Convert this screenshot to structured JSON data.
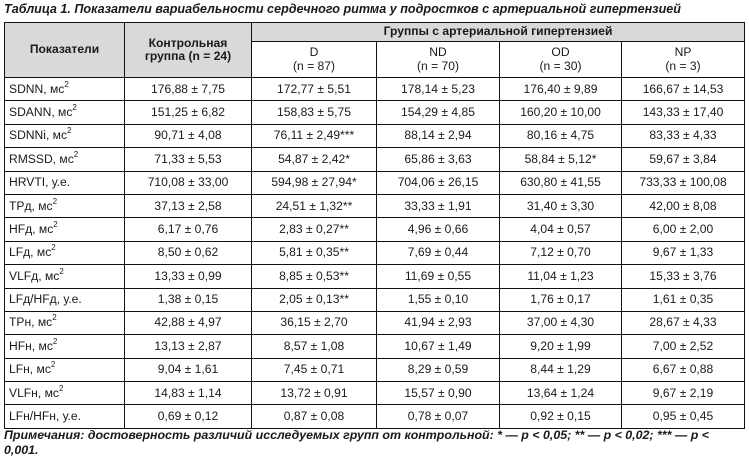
{
  "caption": "Таблица 1. Показатели вариабельности сердечного ритма у подростков с артериальной гипертензией",
  "header": {
    "indicator": "Показатели",
    "control": "Контрольная группа (n = 24)",
    "group_title": "Группы с артериальной гипертензией",
    "groups": [
      {
        "name": "D",
        "n": "(n = 87)"
      },
      {
        "name": "ND",
        "n": "(n = 70)"
      },
      {
        "name": "OD",
        "n": "(n = 30)"
      },
      {
        "name": "NP",
        "n": "(n = 3)"
      }
    ]
  },
  "rows": [
    {
      "label": "SDNN, мс",
      "sup": "2",
      "values": [
        "176,88 ± 7,75",
        "172,77 ± 5,51",
        "178,14 ± 5,23",
        "176,40 ± 9,89",
        "166,67 ± 14,53"
      ]
    },
    {
      "label": "SDANN, мс",
      "sup": "2",
      "values": [
        "151,25 ± 6,82",
        "158,83 ± 5,75",
        "154,29 ± 4,85",
        "160,20 ± 10,00",
        "143,33 ± 17,40"
      ]
    },
    {
      "label": "SDNNi, мс",
      "sup": "2",
      "values": [
        "90,71 ± 4,08",
        "76,11 ± 2,49***",
        "88,14 ± 2,94",
        "80,16 ± 4,75",
        "83,33 ± 4,33"
      ]
    },
    {
      "label": "RMSSD, мс",
      "sup": "2",
      "values": [
        "71,33 ± 5,53",
        "54,87 ± 2,42*",
        "65,86 ± 3,63",
        "58,84 ± 5,12*",
        "59,67 ± 3,84"
      ]
    },
    {
      "label": "HRVTI, у.е.",
      "sup": "",
      "values": [
        "710,08 ± 33,00",
        "594,98 ± 27,94*",
        "704,06 ± 26,15",
        "630,80 ± 41,55",
        "733,33 ± 100,08"
      ]
    },
    {
      "label": "TPд, мс",
      "sup": "2",
      "values": [
        "37,13 ± 2,58",
        "24,51 ± 1,32**",
        "33,33 ± 1,91",
        "31,40 ± 3,30",
        "42,00 ± 8,08"
      ]
    },
    {
      "label": "HFд, мс",
      "sup": "2",
      "values": [
        "6,17 ± 0,76",
        "2,83 ± 0,27**",
        "4,96 ± 0,66",
        "4,04 ± 0,57",
        "6,00 ± 2,00"
      ]
    },
    {
      "label": "LFд, мс",
      "sup": "2",
      "values": [
        "8,50 ± 0,62",
        "5,81 ± 0,35**",
        "7,69 ± 0,44",
        "7,12 ± 0,70",
        "9,67 ± 1,33"
      ]
    },
    {
      "label": "VLFд, мс",
      "sup": "2",
      "values": [
        "13,33 ± 0,99",
        "8,85 ± 0,53**",
        "11,69 ± 0,55",
        "11,04 ± 1,23",
        "15,33 ± 3,76"
      ]
    },
    {
      "label": "LFд/HFд, у.е.",
      "sup": "",
      "values": [
        "1,38 ± 0,15",
        "2,05 ± 0,13**",
        "1,55 ± 0,10",
        "1,76 ± 0,17",
        "1,61 ± 0,35"
      ]
    },
    {
      "label": "TPн, мс",
      "sup": "2",
      "values": [
        "42,88 ± 4,97",
        "36,15 ± 2,70",
        "41,94 ± 2,93",
        "37,00 ± 4,30",
        "28,67 ± 4,33"
      ]
    },
    {
      "label": "HFн, мс",
      "sup": "2",
      "values": [
        "13,13 ± 2,87",
        "8,57 ± 1,08",
        "10,67 ± 1,49",
        "9,20 ± 1,99",
        "7,00 ± 2,52"
      ]
    },
    {
      "label": "LFн, мс",
      "sup": "2",
      "values": [
        "9,04 ± 1,61",
        "7,45 ± 0,71",
        "8,29 ± 0,59",
        "8,44 ± 1,29",
        "6,67 ± 0,88"
      ]
    },
    {
      "label": "VLFн, мс",
      "sup": "2",
      "values": [
        "14,83 ± 1,14",
        "13,72 ± 0,91",
        "15,57 ± 0,90",
        "13,64 ± 1,24",
        "9,67 ± 2,19"
      ]
    },
    {
      "label": "LFн/HFн, у.е.",
      "sup": "",
      "values": [
        "0,69 ± 0,12",
        "0,87 ± 0,08",
        "0,78 ± 0,07",
        "0,92 ± 0,15",
        "0,95 ± 0,45"
      ]
    }
  ],
  "note": "Примечания: достоверность различий исследуемых групп от контрольной: * — p < 0,05; ** — p < 0,02; *** — p < 0,001."
}
